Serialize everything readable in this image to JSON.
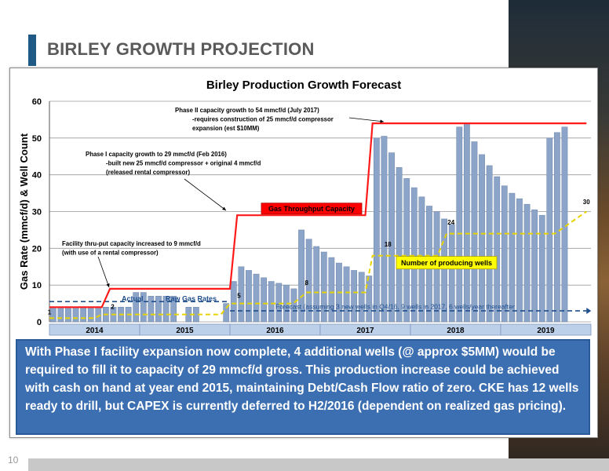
{
  "slide": {
    "title": "BIRLEY GROWTH PROJECTION",
    "page_number": "10",
    "callout": "With Phase I facility expansion now complete, 4 additional wells (@ approx $5MM) would be required to fill it to capacity of 29 mmcf/d gross.  This production increase could be achieved with cash on hand at year end 2015, maintaining Debt/Cash Flow ratio of zero.  CKE has 12 wells ready to drill, but CAPEX is currently deferred to H2/2016 (dependent on realized gas pricing)."
  },
  "chart_data": {
    "type": "bar",
    "title": "Birley Production Growth Forecast",
    "ylabel": "Gas Rate (mmcf/d) & Well Count",
    "ylim": [
      0,
      60
    ],
    "yticks": [
      "0",
      "10",
      "20",
      "30",
      "40",
      "50",
      "60"
    ],
    "year_labels": [
      "2014",
      "2015",
      "2016",
      "2017",
      "2018",
      "2019"
    ],
    "months_per_year": 12,
    "start_year": 2014,
    "series": [
      {
        "name": "Actual",
        "values": [
          4,
          4,
          4,
          4,
          4,
          4,
          4,
          4,
          4,
          4,
          4,
          8,
          8,
          7,
          7,
          7,
          7,
          0,
          4,
          4,
          0,
          0,
          0,
          5
        ]
      },
      {
        "name": "Forecast (assuming 3 new wells in Q4/16, 9 wells in 2017, 6 wells/year thereafter",
        "values": [
          null,
          null,
          null,
          null,
          null,
          null,
          null,
          null,
          null,
          null,
          null,
          null,
          null,
          null,
          null,
          null,
          null,
          null,
          null,
          null,
          null,
          null,
          null,
          null,
          11,
          15,
          14,
          13,
          12,
          11,
          10.5,
          10,
          9,
          25,
          22.5,
          20.5,
          19,
          17.5,
          16,
          15,
          14,
          13.5,
          12.5,
          50,
          50.5,
          46,
          42,
          39,
          36.5,
          34,
          31.5,
          30,
          28,
          26.5,
          53,
          54,
          49,
          45.5,
          42.5,
          39.5,
          37,
          35,
          33.5,
          32,
          30.5,
          29,
          50,
          51.5,
          53
        ]
      }
    ],
    "gas_throughput_capacity": {
      "name": "Gas Throughput Capacity",
      "steps": [
        [
          2014.0,
          4
        ],
        [
          2014.58,
          4
        ],
        [
          2014.67,
          9
        ],
        [
          2016.0,
          9
        ],
        [
          2016.08,
          29
        ],
        [
          2017.5,
          29
        ],
        [
          2017.58,
          54
        ],
        [
          2019.95,
          54
        ]
      ]
    },
    "raw_gas_rates": {
      "name": "Raw Gas Rates",
      "steps": [
        [
          2014.0,
          5.5
        ],
        [
          2016.0,
          5.5
        ]
      ]
    },
    "forecast_line": {
      "steps": [
        [
          2016.0,
          3
        ],
        [
          2019.95,
          3
        ]
      ]
    },
    "producing_wells": {
      "name": "Number of producing wells",
      "steps": [
        [
          2014.0,
          1
        ],
        [
          2014.5,
          1
        ],
        [
          2014.58,
          2
        ],
        [
          2015.9,
          2
        ],
        [
          2016.0,
          5
        ],
        [
          2016.7,
          5
        ],
        [
          2016.85,
          8
        ],
        [
          2017.5,
          8
        ],
        [
          2017.58,
          18
        ],
        [
          2018.3,
          18
        ],
        [
          2018.4,
          24
        ],
        [
          2019.6,
          24
        ],
        [
          2019.95,
          30
        ]
      ]
    },
    "point_labels": [
      {
        "text": "1",
        "x": 2014.0,
        "y": 2
      },
      {
        "text": "2",
        "x": 2014.7,
        "y": 3.5
      },
      {
        "text": "5",
        "x": 2016.1,
        "y": 6.5
      },
      {
        "text": "8",
        "x": 2016.85,
        "y": 10
      },
      {
        "text": "18",
        "x": 2017.75,
        "y": 20.5
      },
      {
        "text": "24",
        "x": 2018.45,
        "y": 26.5
      },
      {
        "text": "30",
        "x": 2019.95,
        "y": 32
      }
    ],
    "annotations": {
      "phase2": [
        "Phase II capacity growth to 54 mmcf/d (July 2017)",
        "-requires construction of 25 mmcf/d compressor",
        "expansion (est $10MM)"
      ],
      "phase1": [
        "Phase I capacity growth to 29 mmcf/d (Feb 2016)",
        "-built new 25 mmcf/d compressor + original 4 mmcf/d",
        "(released rental compressor)"
      ],
      "facility": [
        "Facility thru-put capacity increased to 9 mmcf/d",
        "(with use of a rental compressor)"
      ]
    },
    "colors": {
      "bars": "#8ca4c8",
      "bar_stroke": "#6d86ad",
      "capacity": "#ff1a1a",
      "wells": "#e6d300",
      "forecast": "#1f4e8c",
      "raw": "#1f4e8c",
      "year_band": "#bcd0ea"
    }
  }
}
